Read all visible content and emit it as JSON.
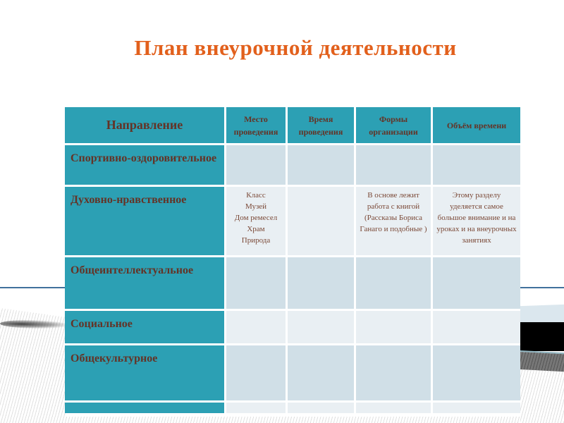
{
  "slide": {
    "title": "План внеурочной деятельности"
  },
  "colors": {
    "accent_teal": "#2CA0B4",
    "row_dark": "#D0DFE7",
    "row_light": "#E9EFF3",
    "title_orange": "#E2601C",
    "text_brown": "#643326",
    "rule_blue": "#41719C"
  },
  "table": {
    "headers": [
      "Направление",
      "Место проведения",
      "Время проведения",
      "Формы организации",
      "Объём времени"
    ],
    "rows": [
      {
        "label": "Спортивно-оздоровительное",
        "place": "",
        "time": "",
        "forms": "",
        "volume": ""
      },
      {
        "label": "Духовно-нравственное",
        "place": "Класс\nМузей\nДом ремесел\nХрам\nПрирода",
        "time": "",
        "forms": "В основе лежит работа с книгой (Рассказы Бориса Ганаго и подобные )",
        "volume": "Этому разделу уделяется самое большое внимание и на уроках и на внеурочных занятиях"
      },
      {
        "label": "Общеинтеллектуальное",
        "place": "",
        "time": "",
        "forms": "",
        "volume": ""
      },
      {
        "label": "Социальное",
        "place": "",
        "time": "",
        "forms": "",
        "volume": ""
      },
      {
        "label": "Общекультурное",
        "place": "",
        "time": "",
        "forms": "",
        "volume": ""
      },
      {
        "label": "",
        "place": "",
        "time": "",
        "forms": "",
        "volume": ""
      }
    ]
  }
}
